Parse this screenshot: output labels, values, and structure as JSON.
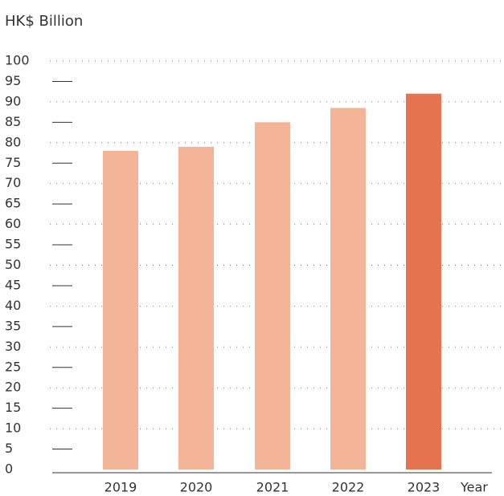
{
  "chart_data": {
    "type": "bar",
    "y_axis_label": "HK$ Billion",
    "x_axis_label": "Year",
    "categories": [
      "2019",
      "2020",
      "2021",
      "2022",
      "2023"
    ],
    "values": [
      78,
      79,
      85,
      88.5,
      92
    ],
    "colors": [
      "#f4b497",
      "#f4b497",
      "#f4b497",
      "#f4b497",
      "#e5734f"
    ],
    "ylim": [
      0,
      100
    ],
    "yticks": [
      0,
      5,
      10,
      15,
      20,
      25,
      30,
      35,
      40,
      45,
      50,
      55,
      60,
      65,
      70,
      75,
      80,
      85,
      90,
      95,
      100
    ],
    "grid": true
  }
}
